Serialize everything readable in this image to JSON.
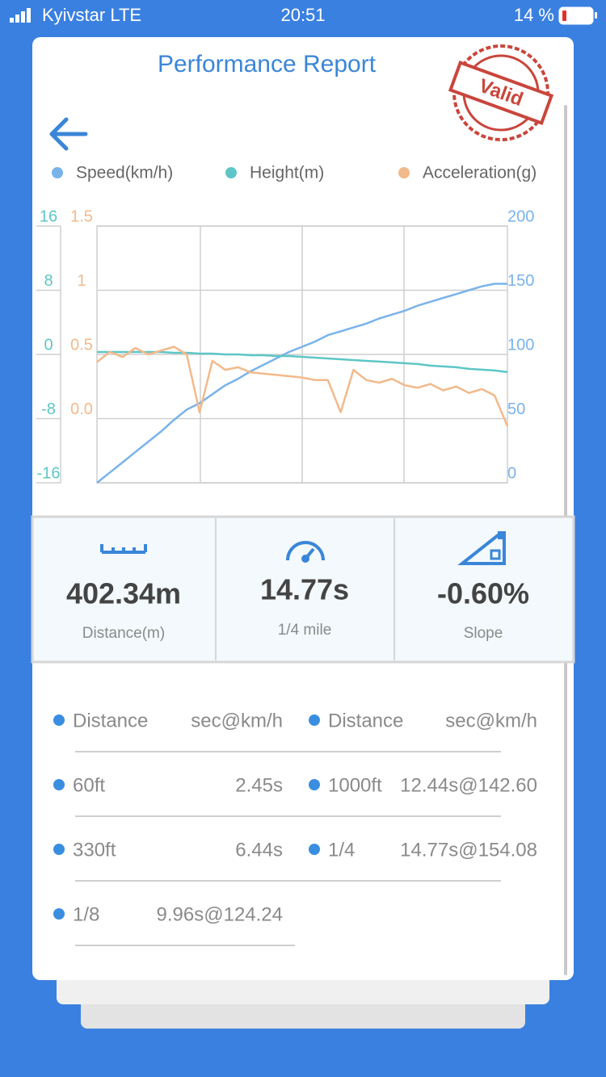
{
  "status_bar": {
    "carrier": "Kyivstar LTE",
    "time": "20:51",
    "battery": "14 %"
  },
  "header": {
    "title": "Performance Report",
    "stamp": "Valid"
  },
  "chart_data": {
    "type": "line",
    "series": [
      {
        "name": "Speed(km/h)",
        "color": "#7ab3ea",
        "axis": "y2",
        "values": [
          0,
          8,
          16,
          24,
          32,
          40,
          49,
          57,
          62,
          69,
          76,
          81,
          87,
          92,
          97,
          102,
          106,
          110,
          115,
          118,
          121,
          124,
          128,
          131,
          134,
          138,
          141,
          144,
          147,
          150,
          153,
          155,
          155
        ]
      },
      {
        "name": "Height(m)",
        "color": "#5ec6c6",
        "values": [
          0.3,
          0.3,
          0.3,
          0.3,
          0.3,
          0.3,
          0.2,
          0.2,
          0.1,
          0.1,
          0.0,
          0.0,
          -0.1,
          -0.1,
          -0.2,
          -0.2,
          -0.3,
          -0.4,
          -0.5,
          -0.6,
          -0.7,
          -0.8,
          -0.9,
          -1.0,
          -1.1,
          -1.2,
          -1.4,
          -1.5,
          -1.6,
          -1.8,
          -1.9,
          -2.0,
          -2.2
        ]
      },
      {
        "name": "Acceleration(g)",
        "color": "#f2b98b",
        "axis": "y3",
        "values": [
          0.44,
          0.52,
          0.48,
          0.55,
          0.5,
          0.53,
          0.56,
          0.5,
          0.05,
          0.45,
          0.38,
          0.4,
          0.36,
          0.35,
          0.34,
          0.33,
          0.32,
          0.3,
          0.3,
          0.05,
          0.38,
          0.3,
          0.28,
          0.31,
          0.26,
          0.24,
          0.27,
          0.22,
          0.25,
          0.2,
          0.23,
          0.18,
          -0.06
        ]
      }
    ],
    "ylim": [
      -16,
      16
    ],
    "yticks": [
      -16,
      -8,
      0,
      8,
      16
    ],
    "y2lim": [
      0,
      200
    ],
    "y2ticks": [
      0,
      50,
      100,
      150,
      200
    ],
    "y3lim": [
      -0.5,
      1.5
    ],
    "y3ticks": [
      {
        "value": 0,
        "label": "0.0"
      },
      0.5,
      1,
      1.5
    ],
    "grid": true
  },
  "stats": [
    {
      "value": "402.34m",
      "label": "Distance(m)"
    },
    {
      "value": "14.77s",
      "label": "1/4 mile"
    },
    {
      "value": "-0.60%",
      "label": "Slope"
    }
  ],
  "splits": {
    "columns": [
      {
        "header": [
          "Distance",
          "sec@km/h"
        ],
        "rows": [
          [
            "60ft",
            "2.45s"
          ],
          [
            "330ft",
            "6.44s"
          ],
          [
            "1/8",
            "9.96s@124.24"
          ]
        ]
      },
      {
        "header": [
          "Distance",
          "sec@km/h"
        ],
        "rows": [
          [
            "1000ft",
            "12.44s@142.60"
          ],
          [
            "1/4",
            "14.77s@154.08"
          ]
        ]
      }
    ]
  }
}
